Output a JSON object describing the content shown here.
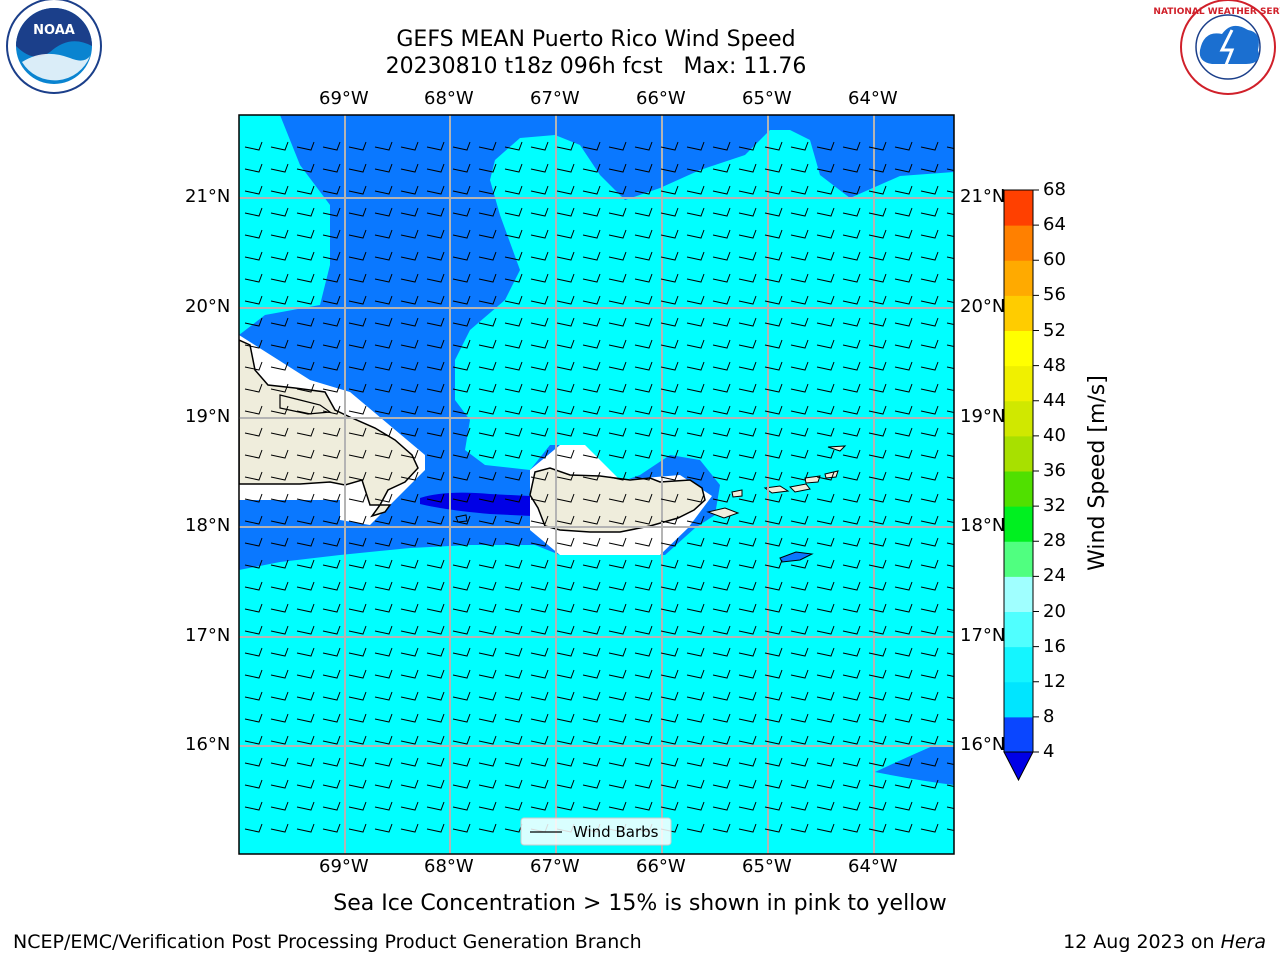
{
  "title": {
    "line1": "GEFS MEAN Puerto Rico Wind Speed",
    "line2": "20230810 t18z 096h fcst   Max: 11.76"
  },
  "subtitle": "Sea Ice Concentration > 15% is shown in pink to yellow",
  "footer": {
    "left": "NCEP/EMC/Verification Post Processing Product Generation Branch",
    "right_date": "12 Aug 2023 on ",
    "right_machine": "Hera"
  },
  "logos": {
    "left": {
      "name": "noaa-logo",
      "text": "NOAA"
    },
    "right": {
      "name": "nws-logo",
      "text": "NATIONAL WEATHER SERVICE"
    }
  },
  "map": {
    "lon_labels": [
      "69°W",
      "68°W",
      "67°W",
      "66°W",
      "65°W",
      "64°W"
    ],
    "lat_labels": [
      "21°N",
      "20°N",
      "19°N",
      "18°N",
      "17°N",
      "16°N"
    ],
    "legend_label": "Wind Barbs"
  },
  "colorbar": {
    "label": "Wind Speed [m/s]",
    "ticks": [
      "4",
      "8",
      "12",
      "16",
      "20",
      "24",
      "28",
      "32",
      "36",
      "40",
      "44",
      "48",
      "52",
      "56",
      "60",
      "64",
      "68"
    ],
    "colors": [
      "#0a46ff",
      "#00e5ff",
      "#14f5ff",
      "#50ffff",
      "#a0ffff",
      "#50ff80",
      "#00f020",
      "#50e000",
      "#a8e000",
      "#d0e800",
      "#f0f000",
      "#ffff00",
      "#ffcc00",
      "#ffaa00",
      "#ff8000",
      "#ff4000",
      "#ff0000"
    ],
    "extend_color": "#0000e6"
  },
  "colors": {
    "ocean_light": "#00ffff",
    "ocean_mid": "#0a78ff",
    "ocean_dark": "#0000e6",
    "land": "#efeddc"
  }
}
